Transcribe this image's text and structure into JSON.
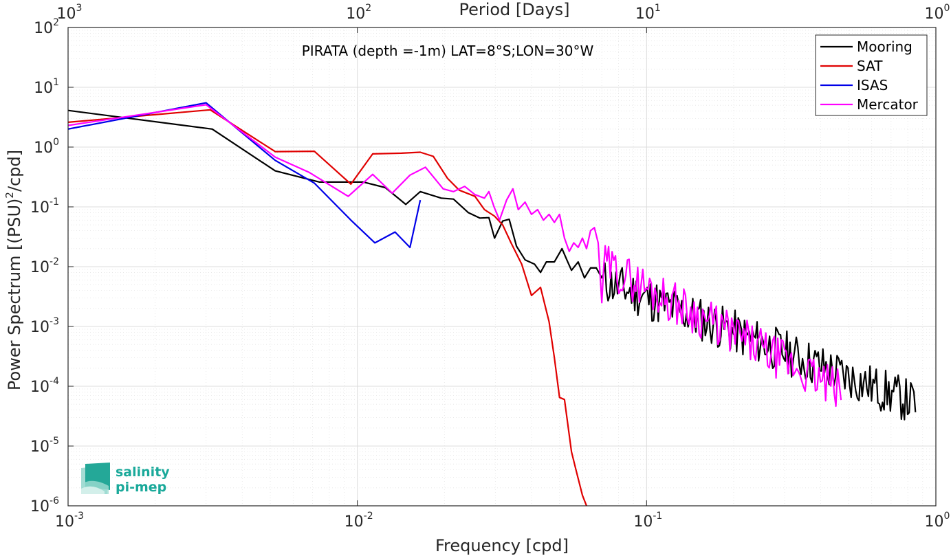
{
  "chart_data": {
    "type": "line",
    "title": "PIRATA (depth =-1m) LAT=8°S;LON=30°W",
    "xlabel": "Frequency [cpd]",
    "ylabel": "Power Spectrum [(PSU)^2/cpd]",
    "top_xlabel": "Period [Days]",
    "xscale": "log",
    "yscale": "log",
    "xlim": [
      0.001,
      1
    ],
    "ylim": [
      1e-06,
      100
    ],
    "grid": true,
    "legend_position": "top-right",
    "x_ticks": [
      {
        "base": "10",
        "exp": "-3"
      },
      {
        "base": "10",
        "exp": "-2"
      },
      {
        "base": "10",
        "exp": "-1"
      },
      {
        "base": "10",
        "exp": "0"
      }
    ],
    "y_ticks": [
      {
        "base": "10",
        "exp": "-6"
      },
      {
        "base": "10",
        "exp": "-5"
      },
      {
        "base": "10",
        "exp": "-4"
      },
      {
        "base": "10",
        "exp": "-3"
      },
      {
        "base": "10",
        "exp": "-2"
      },
      {
        "base": "10",
        "exp": "-1"
      },
      {
        "base": "10",
        "exp": "0"
      },
      {
        "base": "10",
        "exp": "1"
      },
      {
        "base": "10",
        "exp": "2"
      }
    ],
    "top_ticks": [
      {
        "base": "10",
        "exp": "3"
      },
      {
        "base": "10",
        "exp": "2"
      },
      {
        "base": "10",
        "exp": "1"
      },
      {
        "base": "10",
        "exp": "0"
      }
    ],
    "series": [
      {
        "name": "Mooring",
        "color": "#000000",
        "noise": {
          "from": 0.07,
          "to": 0.85,
          "amp": 0.38,
          "seed": 11,
          "npts": 200,
          "logSlope": -1.9,
          "anchorF": 0.1,
          "anchorP": 0.003
        },
        "points": [
          [
            0.001,
            4.1
          ],
          [
            0.00315,
            2.0
          ],
          [
            0.0052,
            0.4
          ],
          [
            0.0074,
            0.26
          ],
          [
            0.0105,
            0.26
          ],
          [
            0.0125,
            0.21
          ],
          [
            0.0147,
            0.11
          ],
          [
            0.0165,
            0.18
          ],
          [
            0.0195,
            0.14
          ],
          [
            0.0215,
            0.135
          ],
          [
            0.0242,
            0.08
          ],
          [
            0.0265,
            0.065
          ],
          [
            0.0285,
            0.066
          ],
          [
            0.0298,
            0.03
          ],
          [
            0.0318,
            0.058
          ],
          [
            0.0335,
            0.062
          ],
          [
            0.0355,
            0.022
          ],
          [
            0.038,
            0.013
          ],
          [
            0.041,
            0.011
          ],
          [
            0.043,
            0.008
          ],
          [
            0.045,
            0.012
          ],
          [
            0.048,
            0.012
          ],
          [
            0.051,
            0.02
          ],
          [
            0.053,
            0.013
          ],
          [
            0.055,
            0.0087
          ],
          [
            0.058,
            0.012
          ],
          [
            0.061,
            0.0065
          ],
          [
            0.064,
            0.0095
          ],
          [
            0.067,
            0.0095
          ],
          [
            0.07,
            0.0065
          ]
        ]
      },
      {
        "name": "SAT",
        "color": "#e00000",
        "points": [
          [
            0.001,
            2.6
          ],
          [
            0.0031,
            4.2
          ],
          [
            0.0052,
            0.84
          ],
          [
            0.0071,
            0.85
          ],
          [
            0.0095,
            0.24
          ],
          [
            0.0113,
            0.77
          ],
          [
            0.0142,
            0.79
          ],
          [
            0.0165,
            0.82
          ],
          [
            0.0183,
            0.7
          ],
          [
            0.0205,
            0.3
          ],
          [
            0.0225,
            0.19
          ],
          [
            0.0255,
            0.15
          ],
          [
            0.0275,
            0.09
          ],
          [
            0.0298,
            0.07
          ],
          [
            0.0318,
            0.05
          ],
          [
            0.034,
            0.025
          ],
          [
            0.037,
            0.011
          ],
          [
            0.04,
            0.0033
          ],
          [
            0.043,
            0.0045
          ],
          [
            0.046,
            0.0012
          ],
          [
            0.048,
            0.0003
          ],
          [
            0.05,
            6.5e-05
          ],
          [
            0.052,
            6e-05
          ],
          [
            0.055,
            8e-06
          ],
          [
            0.057,
            4e-06
          ],
          [
            0.06,
            1.5e-06
          ],
          [
            0.062,
            1e-06
          ]
        ]
      },
      {
        "name": "ISAS",
        "color": "#0000e8",
        "points": [
          [
            0.001,
            2.0
          ],
          [
            0.003,
            5.5
          ],
          [
            0.0052,
            0.6
          ],
          [
            0.0071,
            0.25
          ],
          [
            0.0095,
            0.06
          ],
          [
            0.0115,
            0.025
          ],
          [
            0.0135,
            0.038
          ],
          [
            0.0152,
            0.021
          ],
          [
            0.0165,
            0.13
          ]
        ]
      },
      {
        "name": "Mercator",
        "color": "#ff00ff",
        "noise": {
          "from": 0.07,
          "to": 0.47,
          "amp": 0.36,
          "seed": 29,
          "npts": 140,
          "logSlope": -2.6,
          "anchorF": 0.1,
          "anchorP": 0.0045
        },
        "points": [
          [
            0.001,
            2.3
          ],
          [
            0.003,
            5.1
          ],
          [
            0.0052,
            0.68
          ],
          [
            0.0068,
            0.38
          ],
          [
            0.0093,
            0.15
          ],
          [
            0.0113,
            0.35
          ],
          [
            0.0132,
            0.17
          ],
          [
            0.0152,
            0.34
          ],
          [
            0.0172,
            0.46
          ],
          [
            0.0198,
            0.2
          ],
          [
            0.0215,
            0.18
          ],
          [
            0.0235,
            0.22
          ],
          [
            0.0255,
            0.16
          ],
          [
            0.0275,
            0.14
          ],
          [
            0.0285,
            0.18
          ],
          [
            0.0297,
            0.1
          ],
          [
            0.031,
            0.06
          ],
          [
            0.0328,
            0.13
          ],
          [
            0.0345,
            0.2
          ],
          [
            0.036,
            0.09
          ],
          [
            0.038,
            0.12
          ],
          [
            0.04,
            0.075
          ],
          [
            0.042,
            0.09
          ],
          [
            0.044,
            0.06
          ],
          [
            0.046,
            0.075
          ],
          [
            0.048,
            0.055
          ],
          [
            0.05,
            0.075
          ],
          [
            0.052,
            0.03
          ],
          [
            0.054,
            0.018
          ],
          [
            0.056,
            0.025
          ],
          [
            0.058,
            0.021
          ],
          [
            0.06,
            0.03
          ],
          [
            0.062,
            0.02
          ],
          [
            0.064,
            0.04
          ],
          [
            0.066,
            0.045
          ],
          [
            0.068,
            0.025
          ],
          [
            0.07,
            0.0025
          ]
        ]
      }
    ]
  },
  "logo": {
    "line1": "salinity",
    "line2": "pi-mep"
  }
}
